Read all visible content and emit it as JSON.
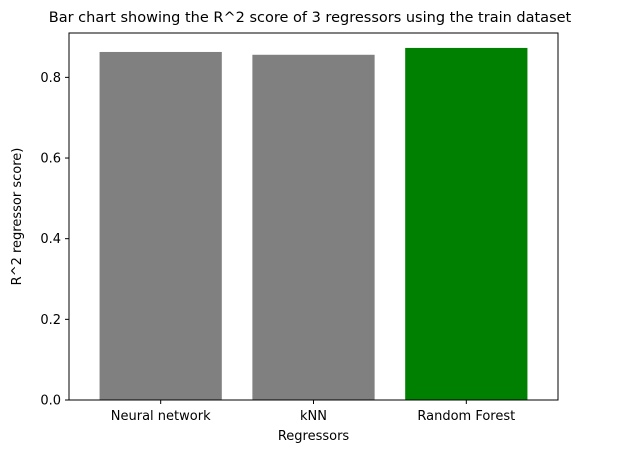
{
  "chart_data": {
    "type": "bar",
    "title": "Bar chart showing the R^2 score of 3 regressors using the train dataset",
    "xlabel": "Regressors",
    "ylabel": "R^2 regressor score)",
    "categories": [
      "Neural network",
      "kNN",
      "Random Forest"
    ],
    "values": [
      0.863,
      0.856,
      0.873
    ],
    "bar_colors": [
      "#808080",
      "#808080",
      "#008000"
    ],
    "ylim": [
      0,
      0.91
    ],
    "yticks": [
      0.0,
      0.2,
      0.4,
      0.6,
      0.8
    ],
    "ytick_labels": [
      "0.0",
      "0.2",
      "0.4",
      "0.6",
      "0.8"
    ],
    "grid": false,
    "legend": "none"
  }
}
